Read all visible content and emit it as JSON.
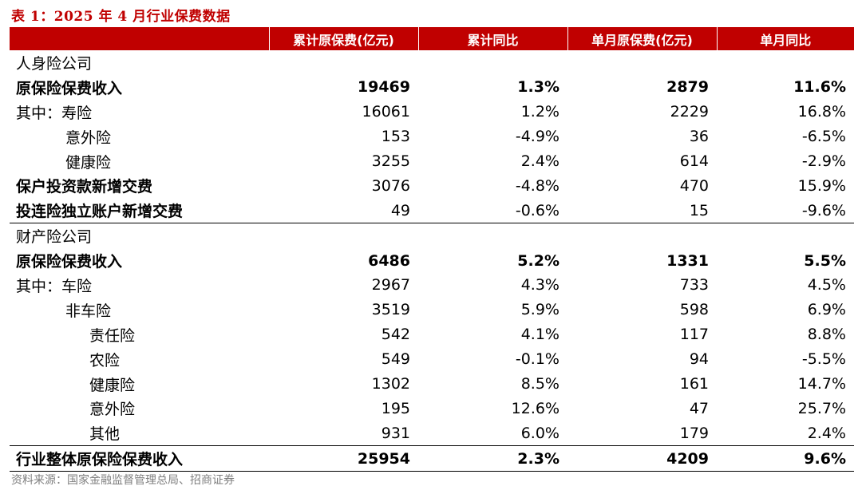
{
  "title": "表 1：2025 年 4 月行业保费数据",
  "columns": [
    "",
    "累计原保费(亿元)",
    "累计同比",
    "单月原保费(亿元)",
    "单月同比"
  ],
  "rows": [
    {
      "label": "人身险公司",
      "cum": "",
      "cum_yoy": "",
      "mon": "",
      "mon_yoy": ""
    },
    {
      "label": "原保险保费收入",
      "cum": "19469",
      "cum_yoy": "1.3%",
      "mon": "2879",
      "mon_yoy": "11.6%"
    },
    {
      "label": "其中：寿险",
      "cum": "16061",
      "cum_yoy": "1.2%",
      "mon": "2229",
      "mon_yoy": "16.8%"
    },
    {
      "label": "意外险",
      "cum": "153",
      "cum_yoy": "-4.9%",
      "mon": "36",
      "mon_yoy": "-6.5%"
    },
    {
      "label": "健康险",
      "cum": "3255",
      "cum_yoy": "2.4%",
      "mon": "614",
      "mon_yoy": "-2.9%"
    },
    {
      "label": "保户投资款新增交费",
      "cum": "3076",
      "cum_yoy": "-4.8%",
      "mon": "470",
      "mon_yoy": "15.9%"
    },
    {
      "label": "投连险独立账户新增交费",
      "cum": "49",
      "cum_yoy": "-0.6%",
      "mon": "15",
      "mon_yoy": "-9.6%"
    },
    {
      "label": "财产险公司",
      "cum": "",
      "cum_yoy": "",
      "mon": "",
      "mon_yoy": ""
    },
    {
      "label": "原保险保费收入",
      "cum": "6486",
      "cum_yoy": "5.2%",
      "mon": "1331",
      "mon_yoy": "5.5%"
    },
    {
      "label": "其中：车险",
      "cum": "2967",
      "cum_yoy": "4.3%",
      "mon": "733",
      "mon_yoy": "4.5%"
    },
    {
      "label": "非车险",
      "cum": "3519",
      "cum_yoy": "5.9%",
      "mon": "598",
      "mon_yoy": "6.9%"
    },
    {
      "label": "责任险",
      "cum": "542",
      "cum_yoy": "4.1%",
      "mon": "117",
      "mon_yoy": "8.8%"
    },
    {
      "label": "农险",
      "cum": "549",
      "cum_yoy": "-0.1%",
      "mon": "94",
      "mon_yoy": "-5.5%"
    },
    {
      "label": "健康险",
      "cum": "1302",
      "cum_yoy": "8.5%",
      "mon": "161",
      "mon_yoy": "14.7%"
    },
    {
      "label": "意外险",
      "cum": "195",
      "cum_yoy": "12.6%",
      "mon": "47",
      "mon_yoy": "25.7%"
    },
    {
      "label": "其他",
      "cum": "931",
      "cum_yoy": "6.0%",
      "mon": "179",
      "mon_yoy": "2.4%"
    },
    {
      "label": "行业整体原保险保费收入",
      "cum": "25954",
      "cum_yoy": "2.3%",
      "mon": "4209",
      "mon_yoy": "9.6%"
    }
  ],
  "source": "资料来源：国家金融监督管理总局、招商证券",
  "colors": {
    "header_bg": "#c00000",
    "title": "#c00000",
    "source": "#7f7f7f"
  }
}
